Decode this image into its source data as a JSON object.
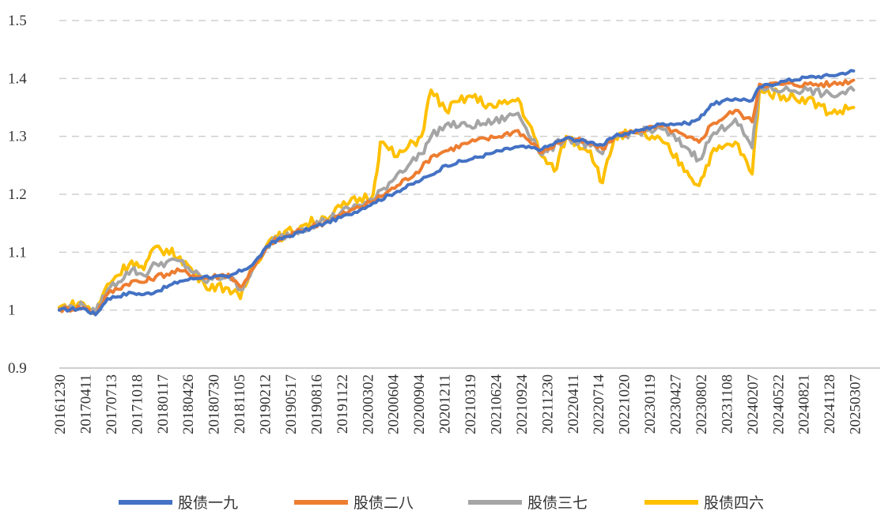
{
  "chart_data": {
    "type": "line",
    "title": "",
    "xlabel": "",
    "ylabel": "",
    "ylim": [
      0.9,
      1.5
    ],
    "y_ticks": [
      "0.9",
      "1",
      "1.1",
      "1.2",
      "1.3",
      "1.4",
      "1.5"
    ],
    "grid": true,
    "legend": "bottom",
    "x_tick_labels": [
      "20161230",
      "20170411",
      "20170713",
      "20171018",
      "20180117",
      "20180426",
      "20180730",
      "20181105",
      "20190212",
      "20190517",
      "20190816",
      "20191122",
      "20200302",
      "20200604",
      "20200904",
      "20201211",
      "20210319",
      "20210624",
      "20210924",
      "20211230",
      "20220411",
      "20220714",
      "20221020",
      "20230119",
      "20230427",
      "20230802",
      "20231108",
      "20240207",
      "20240522",
      "20240821",
      "20241128",
      "20250307"
    ],
    "x_index_range": [
      0,
      34
    ],
    "series": [
      {
        "name": "股债一九",
        "color": "#4472C4",
        "points": [
          [
            0,
            1.0
          ],
          [
            1,
            1.003
          ],
          [
            1.5,
            0.992
          ],
          [
            2,
            1.02
          ],
          [
            3,
            1.03
          ],
          [
            3.5,
            1.027
          ],
          [
            4,
            1.032
          ],
          [
            5,
            1.05
          ],
          [
            6,
            1.058
          ],
          [
            7,
            1.057
          ],
          [
            8,
            1.078
          ],
          [
            8.8,
            1.118
          ],
          [
            9,
            1.12
          ],
          [
            10,
            1.135
          ],
          [
            11,
            1.15
          ],
          [
            12,
            1.165
          ],
          [
            13,
            1.185
          ],
          [
            14,
            1.205
          ],
          [
            15,
            1.225
          ],
          [
            15.4,
            1.233
          ],
          [
            16,
            1.25
          ],
          [
            17,
            1.26
          ],
          [
            18,
            1.272
          ],
          [
            19,
            1.282
          ],
          [
            20,
            1.278
          ],
          [
            21,
            1.297
          ],
          [
            22,
            1.29
          ],
          [
            22.5,
            1.285
          ],
          [
            23,
            1.3
          ],
          [
            24,
            1.31
          ],
          [
            25,
            1.322
          ],
          [
            26,
            1.322
          ],
          [
            26.5,
            1.33
          ],
          [
            27,
            1.355
          ],
          [
            28,
            1.365
          ],
          [
            28.7,
            1.362
          ],
          [
            29,
            1.385
          ],
          [
            30,
            1.395
          ],
          [
            31,
            1.402
          ],
          [
            32,
            1.405
          ],
          [
            32.9,
            1.413
          ]
        ]
      },
      {
        "name": "股债二八",
        "color": "#ED7D31",
        "points": [
          [
            0,
            1.001
          ],
          [
            1,
            1.005
          ],
          [
            1.5,
            0.993
          ],
          [
            2,
            1.028
          ],
          [
            3,
            1.05
          ],
          [
            3.5,
            1.048
          ],
          [
            4,
            1.058
          ],
          [
            5,
            1.068
          ],
          [
            6,
            1.055
          ],
          [
            7,
            1.062
          ],
          [
            7.5,
            1.04
          ],
          [
            8,
            1.07
          ],
          [
            8.8,
            1.118
          ],
          [
            9,
            1.12
          ],
          [
            10,
            1.137
          ],
          [
            11,
            1.152
          ],
          [
            12,
            1.17
          ],
          [
            13,
            1.188
          ],
          [
            14,
            1.215
          ],
          [
            15,
            1.245
          ],
          [
            15.4,
            1.265
          ],
          [
            16,
            1.275
          ],
          [
            17,
            1.29
          ],
          [
            18,
            1.298
          ],
          [
            19,
            1.31
          ],
          [
            20,
            1.272
          ],
          [
            21,
            1.298
          ],
          [
            22,
            1.287
          ],
          [
            22.5,
            1.278
          ],
          [
            23,
            1.3
          ],
          [
            24,
            1.31
          ],
          [
            25,
            1.318
          ],
          [
            26,
            1.298
          ],
          [
            26.5,
            1.29
          ],
          [
            27,
            1.32
          ],
          [
            28,
            1.345
          ],
          [
            28.7,
            1.325
          ],
          [
            29,
            1.39
          ],
          [
            30,
            1.39
          ],
          [
            31,
            1.39
          ],
          [
            32,
            1.39
          ],
          [
            32.9,
            1.397
          ]
        ]
      },
      {
        "name": "股债三七",
        "color": "#A5A5A5",
        "points": [
          [
            0,
            1.002
          ],
          [
            1,
            1.008
          ],
          [
            1.5,
            0.995
          ],
          [
            2,
            1.035
          ],
          [
            3,
            1.07
          ],
          [
            3.5,
            1.06
          ],
          [
            4,
            1.08
          ],
          [
            5,
            1.085
          ],
          [
            6,
            1.05
          ],
          [
            7,
            1.06
          ],
          [
            7.5,
            1.035
          ],
          [
            8,
            1.07
          ],
          [
            8.8,
            1.12
          ],
          [
            9,
            1.122
          ],
          [
            10,
            1.14
          ],
          [
            11,
            1.155
          ],
          [
            12,
            1.175
          ],
          [
            13,
            1.19
          ],
          [
            14,
            1.235
          ],
          [
            15,
            1.27
          ],
          [
            15.4,
            1.3
          ],
          [
            16,
            1.32
          ],
          [
            17,
            1.318
          ],
          [
            18,
            1.325
          ],
          [
            19,
            1.34
          ],
          [
            20,
            1.268
          ],
          [
            21,
            1.298
          ],
          [
            22,
            1.283
          ],
          [
            22.5,
            1.27
          ],
          [
            23,
            1.3
          ],
          [
            24,
            1.308
          ],
          [
            25,
            1.312
          ],
          [
            26,
            1.28
          ],
          [
            26.5,
            1.26
          ],
          [
            27,
            1.3
          ],
          [
            28,
            1.33
          ],
          [
            28.7,
            1.28
          ],
          [
            29,
            1.385
          ],
          [
            30,
            1.38
          ],
          [
            31,
            1.38
          ],
          [
            32,
            1.37
          ],
          [
            32.9,
            1.38
          ]
        ]
      },
      {
        "name": "股债四六",
        "color": "#FFC000",
        "points": [
          [
            0,
            1.005
          ],
          [
            1,
            1.012
          ],
          [
            1.5,
            0.995
          ],
          [
            2,
            1.045
          ],
          [
            3,
            1.085
          ],
          [
            3.5,
            1.07
          ],
          [
            4,
            1.11
          ],
          [
            5,
            1.092
          ],
          [
            6,
            1.045
          ],
          [
            7,
            1.038
          ],
          [
            7.5,
            1.02
          ],
          [
            8,
            1.075
          ],
          [
            8.8,
            1.125
          ],
          [
            9,
            1.124
          ],
          [
            10,
            1.145
          ],
          [
            11,
            1.16
          ],
          [
            12,
            1.185
          ],
          [
            13,
            1.2
          ],
          [
            13.3,
            1.29
          ],
          [
            14,
            1.265
          ],
          [
            15,
            1.3
          ],
          [
            15.4,
            1.38
          ],
          [
            16,
            1.345
          ],
          [
            17,
            1.37
          ],
          [
            18,
            1.35
          ],
          [
            19,
            1.365
          ],
          [
            20,
            1.265
          ],
          [
            20.5,
            1.24
          ],
          [
            21,
            1.3
          ],
          [
            22,
            1.275
          ],
          [
            22.5,
            1.22
          ],
          [
            23,
            1.3
          ],
          [
            24,
            1.305
          ],
          [
            25,
            1.29
          ],
          [
            26,
            1.24
          ],
          [
            26.5,
            1.215
          ],
          [
            27,
            1.27
          ],
          [
            28,
            1.29
          ],
          [
            28.7,
            1.235
          ],
          [
            29,
            1.38
          ],
          [
            30,
            1.37
          ],
          [
            31,
            1.365
          ],
          [
            32,
            1.34
          ],
          [
            32.9,
            1.35
          ]
        ]
      }
    ]
  }
}
